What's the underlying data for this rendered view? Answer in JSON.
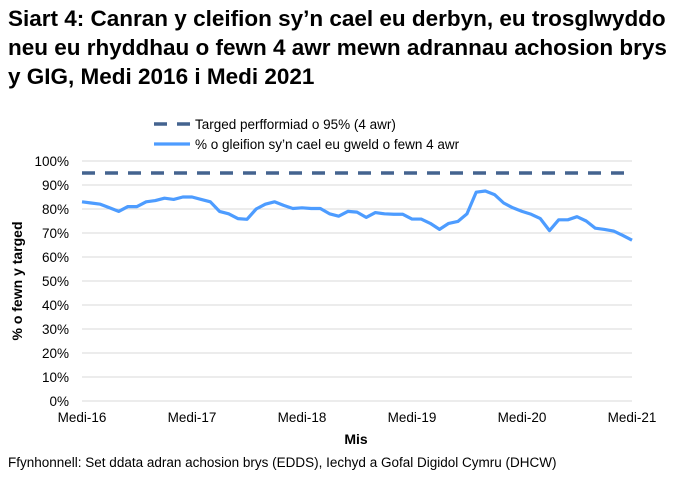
{
  "chart_data": {
    "type": "line",
    "title": "Siart 4: Canran y cleifion sy’n cael eu derbyn, eu trosglwyddo neu eu rhyddhau o fewn 4 awr mewn adrannau achosion brys y GIG, Medi 2016 i Medi 2021",
    "xlabel": "Mis",
    "ylabel": "% o fewn y targed",
    "ylim": [
      0,
      100
    ],
    "yticks": [
      "0%",
      "10%",
      "20%",
      "30%",
      "40%",
      "50%",
      "60%",
      "70%",
      "80%",
      "90%",
      "100%"
    ],
    "xticks": [
      "Medi-16",
      "Medi-17",
      "Medi-18",
      "Medi-19",
      "Medi-20",
      "Medi-21"
    ],
    "x_range": [
      "2016-09",
      "2021-09"
    ],
    "grid": true,
    "legend_placement": "top",
    "series": [
      {
        "name": "Targed perfformiad o 95% (4 awr)",
        "style": "dashed",
        "color": "#44638f",
        "values": [
          95
        ]
      },
      {
        "name": "% o gleifion sy’n cael eu gweld o fewn 4 awr",
        "style": "solid",
        "color": "#4d9cff",
        "values": [
          83,
          82.5,
          82,
          80.5,
          79,
          81,
          81,
          83,
          83.5,
          84.5,
          84,
          85,
          85,
          84,
          83,
          79,
          78,
          76,
          75.7,
          80,
          82,
          83,
          81.5,
          80.2,
          80.5,
          80.2,
          80.2,
          78,
          77,
          79,
          78.7,
          76.5,
          78.5,
          78,
          77.8,
          77.8,
          75.8,
          75.8,
          74,
          71.5,
          74,
          74.8,
          78,
          87,
          87.5,
          86,
          82.5,
          80.5,
          79,
          77.8,
          76,
          71,
          75.5,
          75.5,
          76.8,
          75,
          72,
          71.5,
          70.8,
          69,
          67
        ]
      }
    ]
  },
  "source": "Ffynhonnell: Set ddata adran achosion brys (EDDS), Iechyd a Gofal Digidol Cymru (DHCW)"
}
